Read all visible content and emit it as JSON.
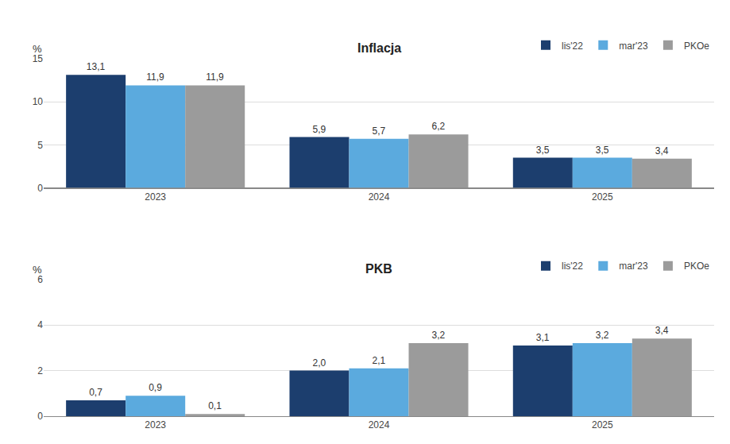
{
  "chart_data": [
    {
      "type": "bar",
      "title": "Inflacja",
      "ylabel": "%",
      "categories": [
        "2023",
        "2024",
        "2025"
      ],
      "series": [
        {
          "name": "lis'22",
          "color": "#1C3E6E",
          "values": [
            13.1,
            5.9,
            3.5
          ],
          "value_labels": [
            "13,1",
            "5,9",
            "3,5"
          ]
        },
        {
          "name": "mar'23",
          "color": "#5BAADE",
          "values": [
            11.9,
            5.7,
            3.5
          ],
          "value_labels": [
            "11,9",
            "5,7",
            "3,5"
          ]
        },
        {
          "name": "PKOe",
          "color": "#9B9B9B",
          "values": [
            11.9,
            6.2,
            3.4
          ],
          "value_labels": [
            "11,9",
            "6,2",
            "3,4"
          ]
        }
      ],
      "ylim": [
        0,
        15
      ],
      "yticks": [
        0,
        5,
        10,
        15
      ],
      "grid": true,
      "legend": "upper right",
      "data_labels": true
    },
    {
      "type": "bar",
      "title": "PKB",
      "ylabel": "%",
      "categories": [
        "2023",
        "2024",
        "2025"
      ],
      "series": [
        {
          "name": "lis'22",
          "color": "#1C3E6E",
          "values": [
            0.7,
            2.0,
            3.1
          ],
          "value_labels": [
            "0,7",
            "2,0",
            "3,1"
          ]
        },
        {
          "name": "mar'23",
          "color": "#5BAADE",
          "values": [
            0.9,
            2.1,
            3.2
          ],
          "value_labels": [
            "0,9",
            "2,1",
            "3,2"
          ]
        },
        {
          "name": "PKOe",
          "color": "#9B9B9B",
          "values": [
            0.1,
            3.2,
            3.4
          ],
          "value_labels": [
            "0,1",
            "3,2",
            "3,4"
          ]
        }
      ],
      "ylim": [
        0,
        6
      ],
      "yticks": [
        0,
        2,
        4,
        6
      ],
      "grid": true,
      "legend": "upper right",
      "data_labels": true
    }
  ]
}
